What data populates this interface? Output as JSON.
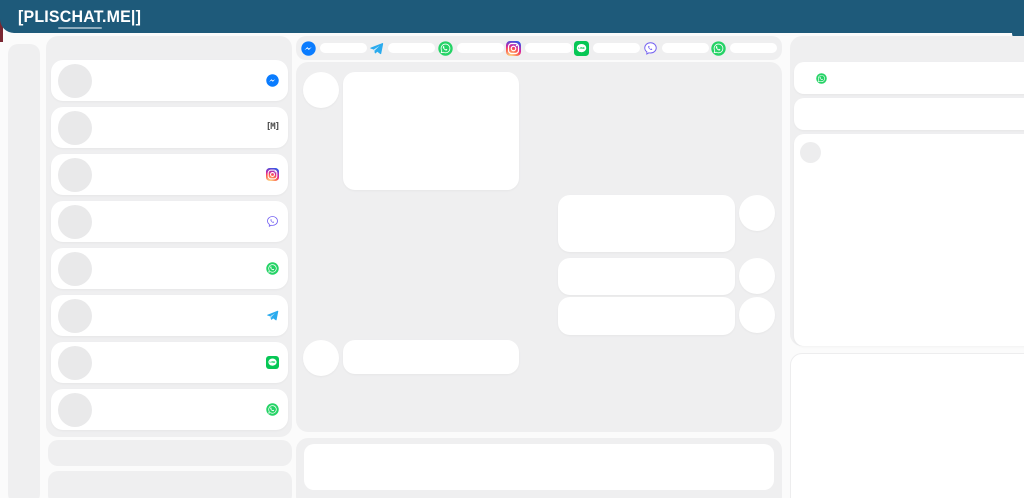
{
  "header": {
    "logo_text": "[PLISCHAT.ME|]"
  },
  "colors": {
    "header_bg": "#1e5a7a",
    "page_bg": "#fbfbfb",
    "panel_bg": "#efeff0",
    "card_bg": "#ffffff",
    "left_edge_accent": "#7a2631",
    "messenger": "#0a7cff",
    "telegram": "#2aabee",
    "whatsapp": "#25d366",
    "line": "#06c755",
    "viber": "#7360f2",
    "instagram_gradient": [
      "#fdf497",
      "#fd5949",
      "#d6249f",
      "#285AEB"
    ]
  },
  "platform_bar": {
    "accounts": [
      {
        "platform": "messenger"
      },
      {
        "platform": "telegram"
      },
      {
        "platform": "whatsapp"
      },
      {
        "platform": "instagram"
      },
      {
        "platform": "line"
      },
      {
        "platform": "viber"
      },
      {
        "platform": "whatsapp"
      }
    ]
  },
  "sidebar": {
    "conversations": [
      {
        "platform": "messenger"
      },
      {
        "platform": "unknown",
        "glyph": "[M]"
      },
      {
        "platform": "instagram"
      },
      {
        "platform": "viber"
      },
      {
        "platform": "whatsapp"
      },
      {
        "platform": "telegram"
      },
      {
        "platform": "line"
      },
      {
        "platform": "whatsapp"
      }
    ]
  },
  "chat": {
    "messages": [
      {
        "direction": "incoming",
        "kind": "large"
      },
      {
        "direction": "outgoing",
        "kind": "medium"
      },
      {
        "direction": "outgoing",
        "kind": "small"
      },
      {
        "direction": "outgoing",
        "kind": "small"
      },
      {
        "direction": "incoming",
        "kind": "small"
      }
    ],
    "input_value": ""
  },
  "right_panel": {
    "header_row_platform": "whatsapp"
  }
}
